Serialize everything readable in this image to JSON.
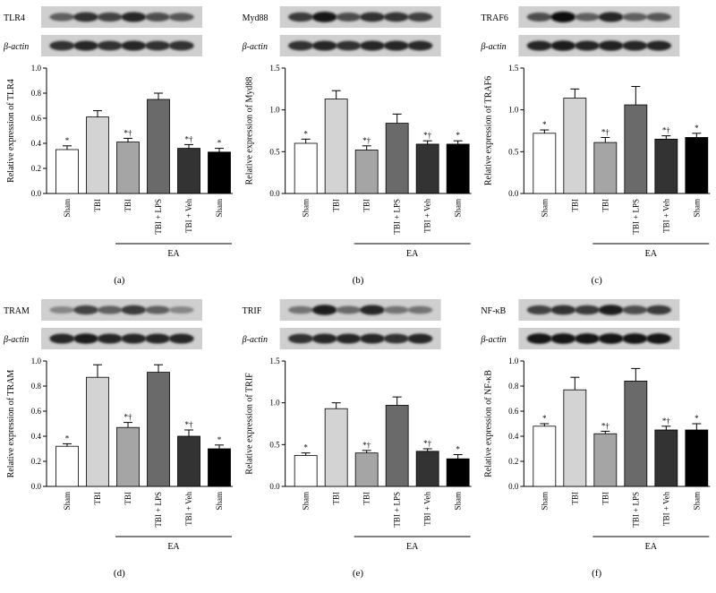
{
  "figure": {
    "panels": [
      {
        "label": "(a)",
        "protein": "TLR4",
        "loading_control": "β-actin",
        "ylabel": "Relative expression of TLR4"
      },
      {
        "label": "(b)",
        "protein": "Myd88",
        "loading_control": "β-actin",
        "ylabel": "Relative expression of Myd88"
      },
      {
        "label": "(c)",
        "protein": "TRAF6",
        "loading_control": "β-actin",
        "ylabel": "Relative expression of TRAF6"
      },
      {
        "label": "(d)",
        "protein": "TRAM",
        "loading_control": "β-actin",
        "ylabel": "Relative expression of TRAM"
      },
      {
        "label": "(e)",
        "protein": "TRIF",
        "loading_control": "β-actin",
        "ylabel": "Relative expression of TRIF"
      },
      {
        "label": "(f)",
        "protein": "NF-κB",
        "loading_control": "β-actin",
        "ylabel": "Relative expression of NF-κB"
      }
    ],
    "group_label": "EA"
  },
  "colors": {
    "Sham": "#ffffff",
    "TBI": "#d3d3d3",
    "EA TBI": "#a5a5a5",
    "EA TBI + LPS": "#6a6a6a",
    "EA TBI + Veh": "#333333",
    "EA Sham": "#000000"
  },
  "chart_data": [
    {
      "type": "bar",
      "title": "",
      "xlabel": "",
      "ylabel": "Relative expression of TLR4",
      "categories": [
        "Sham",
        "TBI",
        "TBI",
        "TBI + LPS",
        "TBI + Veh",
        "Sham"
      ],
      "values": [
        0.35,
        0.61,
        0.41,
        0.75,
        0.36,
        0.33
      ],
      "errors": [
        0.03,
        0.05,
        0.03,
        0.05,
        0.03,
        0.03
      ],
      "significance": [
        "*",
        "",
        "*†",
        "",
        "*†",
        "*"
      ],
      "ylim": [
        0,
        1.0
      ],
      "yticks": [
        0.0,
        0.2,
        0.4,
        0.6,
        0.8,
        1.0
      ],
      "ytick_labels": [
        "0.0",
        "0.2",
        "0.4",
        "0.6",
        "0.8",
        "1.0"
      ],
      "group": {
        "label": "EA",
        "categories": [
          2,
          3,
          4,
          5
        ]
      }
    },
    {
      "type": "bar",
      "title": "",
      "xlabel": "",
      "ylabel": "Relative expression of Myd88",
      "categories": [
        "Sham",
        "TBI",
        "TBI",
        "TBI + LPS",
        "TBI + Veh",
        "Sham"
      ],
      "values": [
        0.6,
        1.13,
        0.52,
        0.84,
        0.59,
        0.59
      ],
      "errors": [
        0.05,
        0.1,
        0.05,
        0.11,
        0.04,
        0.04
      ],
      "significance": [
        "*",
        "",
        "*†",
        "",
        "*†",
        "*"
      ],
      "ylim": [
        0,
        1.5
      ],
      "yticks": [
        0.0,
        0.5,
        1.0,
        1.5
      ],
      "ytick_labels": [
        "0.0",
        "0.5",
        "1.0",
        "1.5"
      ],
      "group": {
        "label": "EA",
        "categories": [
          2,
          3,
          4,
          5
        ]
      }
    },
    {
      "type": "bar",
      "title": "",
      "xlabel": "",
      "ylabel": "Relative expression of TRAF6",
      "categories": [
        "Sham",
        "TBI",
        "TBI",
        "TBI + LPS",
        "TBI + Veh",
        "Sham"
      ],
      "values": [
        0.72,
        1.14,
        0.61,
        1.06,
        0.65,
        0.67
      ],
      "errors": [
        0.04,
        0.11,
        0.06,
        0.22,
        0.04,
        0.05
      ],
      "significance": [
        "*",
        "",
        "*†",
        "",
        "*†",
        "*"
      ],
      "ylim": [
        0,
        1.5
      ],
      "yticks": [
        0.0,
        0.5,
        1.0,
        1.5
      ],
      "ytick_labels": [
        "0.0",
        "0.5",
        "1.0",
        "1.5"
      ],
      "group": {
        "label": "EA",
        "categories": [
          2,
          3,
          4,
          5
        ]
      }
    },
    {
      "type": "bar",
      "title": "",
      "xlabel": "",
      "ylabel": "Relative expression of TRAM",
      "categories": [
        "Sham",
        "TBI",
        "TBI",
        "TBI + LPS",
        "TBI + Veh",
        "Sham"
      ],
      "values": [
        0.32,
        0.87,
        0.47,
        0.91,
        0.4,
        0.3
      ],
      "errors": [
        0.02,
        0.1,
        0.04,
        0.06,
        0.05,
        0.03
      ],
      "significance": [
        "*",
        "",
        "*†",
        "",
        "*†",
        "*"
      ],
      "ylim": [
        0,
        1.0
      ],
      "yticks": [
        0.0,
        0.2,
        0.4,
        0.6,
        0.8,
        1.0
      ],
      "ytick_labels": [
        "0.0",
        "0.2",
        "0.4",
        "0.6",
        "0.8",
        "1.0"
      ],
      "group": {
        "label": "EA",
        "categories": [
          2,
          3,
          4,
          5
        ]
      }
    },
    {
      "type": "bar",
      "title": "",
      "xlabel": "",
      "ylabel": "Relative expression of TRIF",
      "categories": [
        "Sham",
        "TBI",
        "TBI",
        "TBI + LPS",
        "TBI + Veh",
        "Sham"
      ],
      "values": [
        0.37,
        0.93,
        0.4,
        0.97,
        0.42,
        0.33
      ],
      "errors": [
        0.03,
        0.07,
        0.03,
        0.1,
        0.03,
        0.05
      ],
      "significance": [
        "*",
        "",
        "*†",
        "",
        "*†",
        "*"
      ],
      "ylim": [
        0,
        1.5
      ],
      "yticks": [
        0.0,
        0.5,
        1.0,
        1.5
      ],
      "ytick_labels": [
        "0.0",
        "0.5",
        "1.0",
        "1.5"
      ],
      "group": {
        "label": "EA",
        "categories": [
          2,
          3,
          4,
          5
        ]
      }
    },
    {
      "type": "bar",
      "title": "",
      "xlabel": "",
      "ylabel": "Relative expression of NF-κB",
      "categories": [
        "Sham",
        "TBI",
        "TBI",
        "TBI + LPS",
        "TBI + Veh",
        "Sham"
      ],
      "values": [
        0.48,
        0.77,
        0.42,
        0.84,
        0.45,
        0.45
      ],
      "errors": [
        0.02,
        0.1,
        0.02,
        0.1,
        0.03,
        0.05
      ],
      "significance": [
        "*",
        "",
        "*†",
        "",
        "*†",
        "*"
      ],
      "ylim": [
        0,
        1.0
      ],
      "yticks": [
        0.0,
        0.2,
        0.4,
        0.6,
        0.8,
        1.0
      ],
      "ytick_labels": [
        "0.0",
        "0.2",
        "0.4",
        "0.6",
        "0.8",
        "1.0"
      ],
      "group": {
        "label": "EA",
        "categories": [
          2,
          3,
          4,
          5
        ]
      }
    }
  ]
}
